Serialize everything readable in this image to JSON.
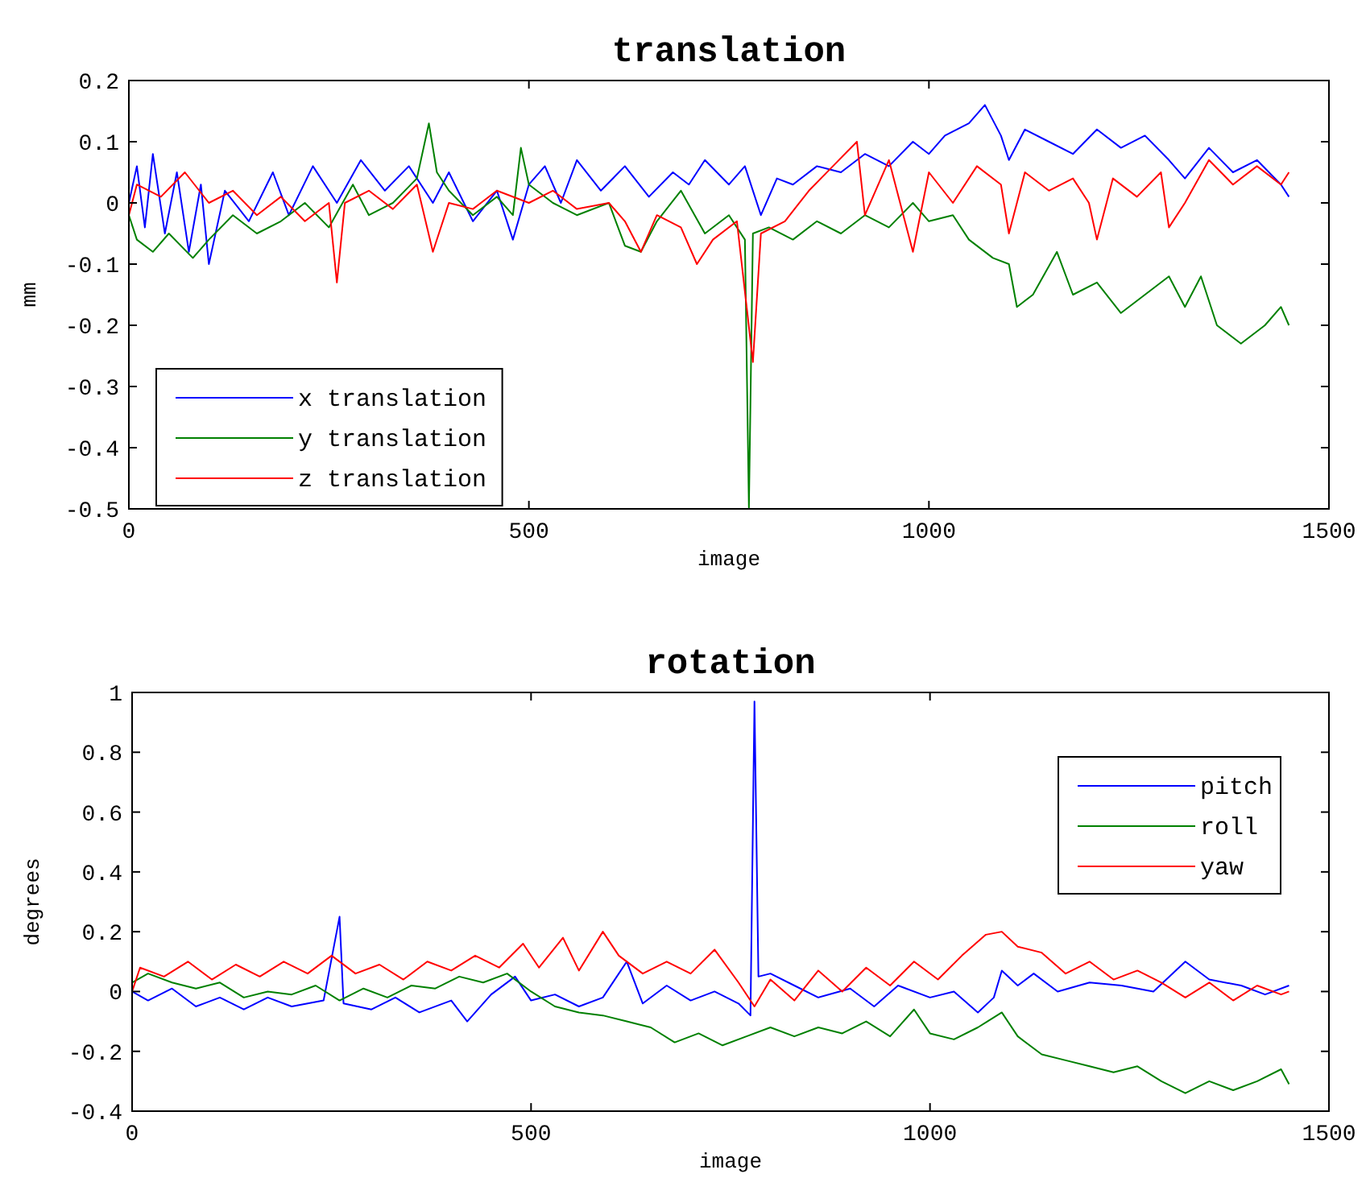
{
  "chart_data": [
    {
      "type": "line",
      "title": "translation",
      "xlabel": "image",
      "ylabel": "mm",
      "xlim": [
        0,
        1500
      ],
      "xticks": [
        0,
        500,
        1000,
        1500
      ],
      "ylim": [
        -0.5,
        0.2
      ],
      "yticks": [
        -0.5,
        -0.4,
        -0.3,
        -0.2,
        -0.1,
        0,
        0.1,
        0.2
      ],
      "grid": false,
      "legend": "bottom left",
      "marker": "none",
      "line_style": "solid",
      "series": [
        {
          "name": "x translation",
          "color": "#0000ff",
          "x": [
            0,
            10,
            20,
            30,
            45,
            60,
            75,
            90,
            100,
            120,
            150,
            180,
            200,
            230,
            260,
            290,
            320,
            350,
            380,
            400,
            430,
            460,
            480,
            500,
            520,
            540,
            560,
            590,
            620,
            650,
            680,
            700,
            720,
            750,
            770,
            790,
            810,
            830,
            860,
            890,
            920,
            950,
            980,
            1000,
            1020,
            1050,
            1070,
            1090,
            1100,
            1120,
            1150,
            1180,
            1210,
            1240,
            1270,
            1300,
            1320,
            1350,
            1380,
            1410,
            1440,
            1450
          ],
          "values": [
            0,
            0.06,
            -0.04,
            0.08,
            -0.05,
            0.05,
            -0.08,
            0.03,
            -0.1,
            0.02,
            -0.03,
            0.05,
            -0.02,
            0.06,
            0,
            0.07,
            0.02,
            0.06,
            0,
            0.05,
            -0.03,
            0.02,
            -0.06,
            0.03,
            0.06,
            0,
            0.07,
            0.02,
            0.06,
            0.01,
            0.05,
            0.03,
            0.07,
            0.03,
            0.06,
            -0.02,
            0.04,
            0.03,
            0.06,
            0.05,
            0.08,
            0.06,
            0.1,
            0.08,
            0.11,
            0.13,
            0.16,
            0.11,
            0.07,
            0.12,
            0.1,
            0.08,
            0.12,
            0.09,
            0.11,
            0.07,
            0.04,
            0.09,
            0.05,
            0.07,
            0.03,
            0.01
          ]
        },
        {
          "name": "y translation",
          "color": "#008000",
          "x": [
            0,
            10,
            30,
            50,
            80,
            100,
            130,
            160,
            190,
            220,
            250,
            280,
            300,
            330,
            360,
            375,
            385,
            400,
            430,
            460,
            480,
            490,
            500,
            530,
            560,
            600,
            620,
            640,
            660,
            690,
            720,
            750,
            770,
            775,
            780,
            800,
            830,
            860,
            890,
            920,
            950,
            980,
            1000,
            1030,
            1050,
            1080,
            1100,
            1110,
            1130,
            1160,
            1180,
            1210,
            1240,
            1270,
            1300,
            1320,
            1340,
            1360,
            1390,
            1420,
            1440,
            1450
          ],
          "values": [
            -0.02,
            -0.06,
            -0.08,
            -0.05,
            -0.09,
            -0.06,
            -0.02,
            -0.05,
            -0.03,
            0,
            -0.04,
            0.03,
            -0.02,
            0,
            0.04,
            0.13,
            0.05,
            0.02,
            -0.02,
            0.01,
            -0.02,
            0.09,
            0.03,
            0,
            -0.02,
            0,
            -0.07,
            -0.08,
            -0.03,
            0.02,
            -0.05,
            -0.02,
            -0.06,
            -0.5,
            -0.05,
            -0.04,
            -0.06,
            -0.03,
            -0.05,
            -0.02,
            -0.04,
            0,
            -0.03,
            -0.02,
            -0.06,
            -0.09,
            -0.1,
            -0.17,
            -0.15,
            -0.08,
            -0.15,
            -0.13,
            -0.18,
            -0.15,
            -0.12,
            -0.17,
            -0.12,
            -0.2,
            -0.23,
            -0.2,
            -0.17,
            -0.2
          ]
        },
        {
          "name": "z translation",
          "color": "#ff0000",
          "x": [
            0,
            10,
            40,
            70,
            100,
            130,
            160,
            190,
            220,
            250,
            260,
            270,
            300,
            330,
            360,
            380,
            400,
            430,
            460,
            500,
            530,
            560,
            600,
            620,
            640,
            660,
            690,
            710,
            730,
            760,
            780,
            790,
            820,
            850,
            880,
            910,
            920,
            950,
            980,
            1000,
            1030,
            1060,
            1090,
            1100,
            1120,
            1150,
            1180,
            1200,
            1210,
            1230,
            1260,
            1290,
            1300,
            1320,
            1350,
            1380,
            1410,
            1440,
            1450
          ],
          "values": [
            -0.02,
            0.03,
            0.01,
            0.05,
            0,
            0.02,
            -0.02,
            0.01,
            -0.03,
            0,
            -0.13,
            0,
            0.02,
            -0.01,
            0.03,
            -0.08,
            0,
            -0.01,
            0.02,
            0,
            0.02,
            -0.01,
            0,
            -0.03,
            -0.08,
            -0.02,
            -0.04,
            -0.1,
            -0.06,
            -0.03,
            -0.26,
            -0.05,
            -0.03,
            0.02,
            0.06,
            0.1,
            -0.02,
            0.07,
            -0.08,
            0.05,
            0,
            0.06,
            0.03,
            -0.05,
            0.05,
            0.02,
            0.04,
            0,
            -0.06,
            0.04,
            0.01,
            0.05,
            -0.04,
            0,
            0.07,
            0.03,
            0.06,
            0.03,
            0.05
          ]
        }
      ]
    },
    {
      "type": "line",
      "title": "rotation",
      "xlabel": "image",
      "ylabel": "degrees",
      "xlim": [
        0,
        1500
      ],
      "xticks": [
        0,
        500,
        1000,
        1500
      ],
      "ylim": [
        -0.4,
        1
      ],
      "yticks": [
        -0.4,
        -0.2,
        0,
        0.2,
        0.4,
        0.6,
        0.8,
        1
      ],
      "grid": false,
      "legend": "top right",
      "marker": "none",
      "line_style": "solid",
      "series": [
        {
          "name": "pitch",
          "color": "#0000ff",
          "x": [
            0,
            20,
            50,
            80,
            110,
            140,
            170,
            200,
            240,
            260,
            265,
            300,
            330,
            360,
            400,
            420,
            450,
            480,
            500,
            530,
            560,
            590,
            620,
            640,
            670,
            700,
            730,
            760,
            775,
            780,
            785,
            800,
            830,
            860,
            900,
            930,
            960,
            1000,
            1030,
            1060,
            1080,
            1090,
            1110,
            1130,
            1160,
            1200,
            1240,
            1280,
            1320,
            1350,
            1390,
            1420,
            1450
          ],
          "values": [
            0,
            -0.03,
            0.01,
            -0.05,
            -0.02,
            -0.06,
            -0.02,
            -0.05,
            -0.03,
            0.25,
            -0.04,
            -0.06,
            -0.02,
            -0.07,
            -0.03,
            -0.1,
            -0.01,
            0.05,
            -0.03,
            -0.01,
            -0.05,
            -0.02,
            0.1,
            -0.04,
            0.02,
            -0.03,
            0,
            -0.04,
            -0.08,
            0.97,
            0.05,
            0.06,
            0.02,
            -0.02,
            0.01,
            -0.05,
            0.02,
            -0.02,
            0,
            -0.07,
            -0.02,
            0.07,
            0.02,
            0.06,
            0,
            0.03,
            0.02,
            0,
            0.1,
            0.04,
            0.02,
            -0.01,
            0.02
          ]
        },
        {
          "name": "roll",
          "color": "#008000",
          "x": [
            0,
            20,
            50,
            80,
            110,
            140,
            170,
            200,
            230,
            260,
            290,
            320,
            350,
            380,
            410,
            440,
            470,
            500,
            530,
            560,
            590,
            620,
            650,
            680,
            710,
            740,
            770,
            800,
            830,
            860,
            890,
            920,
            950,
            980,
            1000,
            1030,
            1060,
            1090,
            1110,
            1140,
            1170,
            1200,
            1230,
            1260,
            1290,
            1320,
            1350,
            1380,
            1410,
            1440,
            1450
          ],
          "values": [
            0.03,
            0.06,
            0.03,
            0.01,
            0.03,
            -0.02,
            0,
            -0.01,
            0.02,
            -0.03,
            0.01,
            -0.02,
            0.02,
            0.01,
            0.05,
            0.03,
            0.06,
            0,
            -0.05,
            -0.07,
            -0.08,
            -0.1,
            -0.12,
            -0.17,
            -0.14,
            -0.18,
            -0.15,
            -0.12,
            -0.15,
            -0.12,
            -0.14,
            -0.1,
            -0.15,
            -0.06,
            -0.14,
            -0.16,
            -0.12,
            -0.07,
            -0.15,
            -0.21,
            -0.23,
            -0.25,
            -0.27,
            -0.25,
            -0.3,
            -0.34,
            -0.3,
            -0.33,
            -0.3,
            -0.26,
            -0.31
          ]
        },
        {
          "name": "yaw",
          "color": "#ff0000",
          "x": [
            0,
            10,
            40,
            70,
            100,
            130,
            160,
            190,
            220,
            250,
            280,
            310,
            340,
            370,
            400,
            430,
            460,
            490,
            510,
            540,
            560,
            590,
            610,
            640,
            670,
            700,
            730,
            760,
            780,
            800,
            830,
            860,
            890,
            920,
            950,
            980,
            1010,
            1040,
            1070,
            1090,
            1110,
            1140,
            1170,
            1200,
            1230,
            1260,
            1290,
            1320,
            1350,
            1380,
            1410,
            1440,
            1450
          ],
          "values": [
            0,
            0.08,
            0.05,
            0.1,
            0.04,
            0.09,
            0.05,
            0.1,
            0.06,
            0.12,
            0.06,
            0.09,
            0.04,
            0.1,
            0.07,
            0.12,
            0.08,
            0.16,
            0.08,
            0.18,
            0.07,
            0.2,
            0.12,
            0.06,
            0.1,
            0.06,
            0.14,
            0.03,
            -0.05,
            0.04,
            -0.03,
            0.07,
            0,
            0.08,
            0.02,
            0.1,
            0.04,
            0.12,
            0.19,
            0.2,
            0.15,
            0.13,
            0.06,
            0.1,
            0.04,
            0.07,
            0.03,
            -0.02,
            0.03,
            -0.03,
            0.02,
            -0.01,
            0
          ]
        }
      ]
    }
  ]
}
